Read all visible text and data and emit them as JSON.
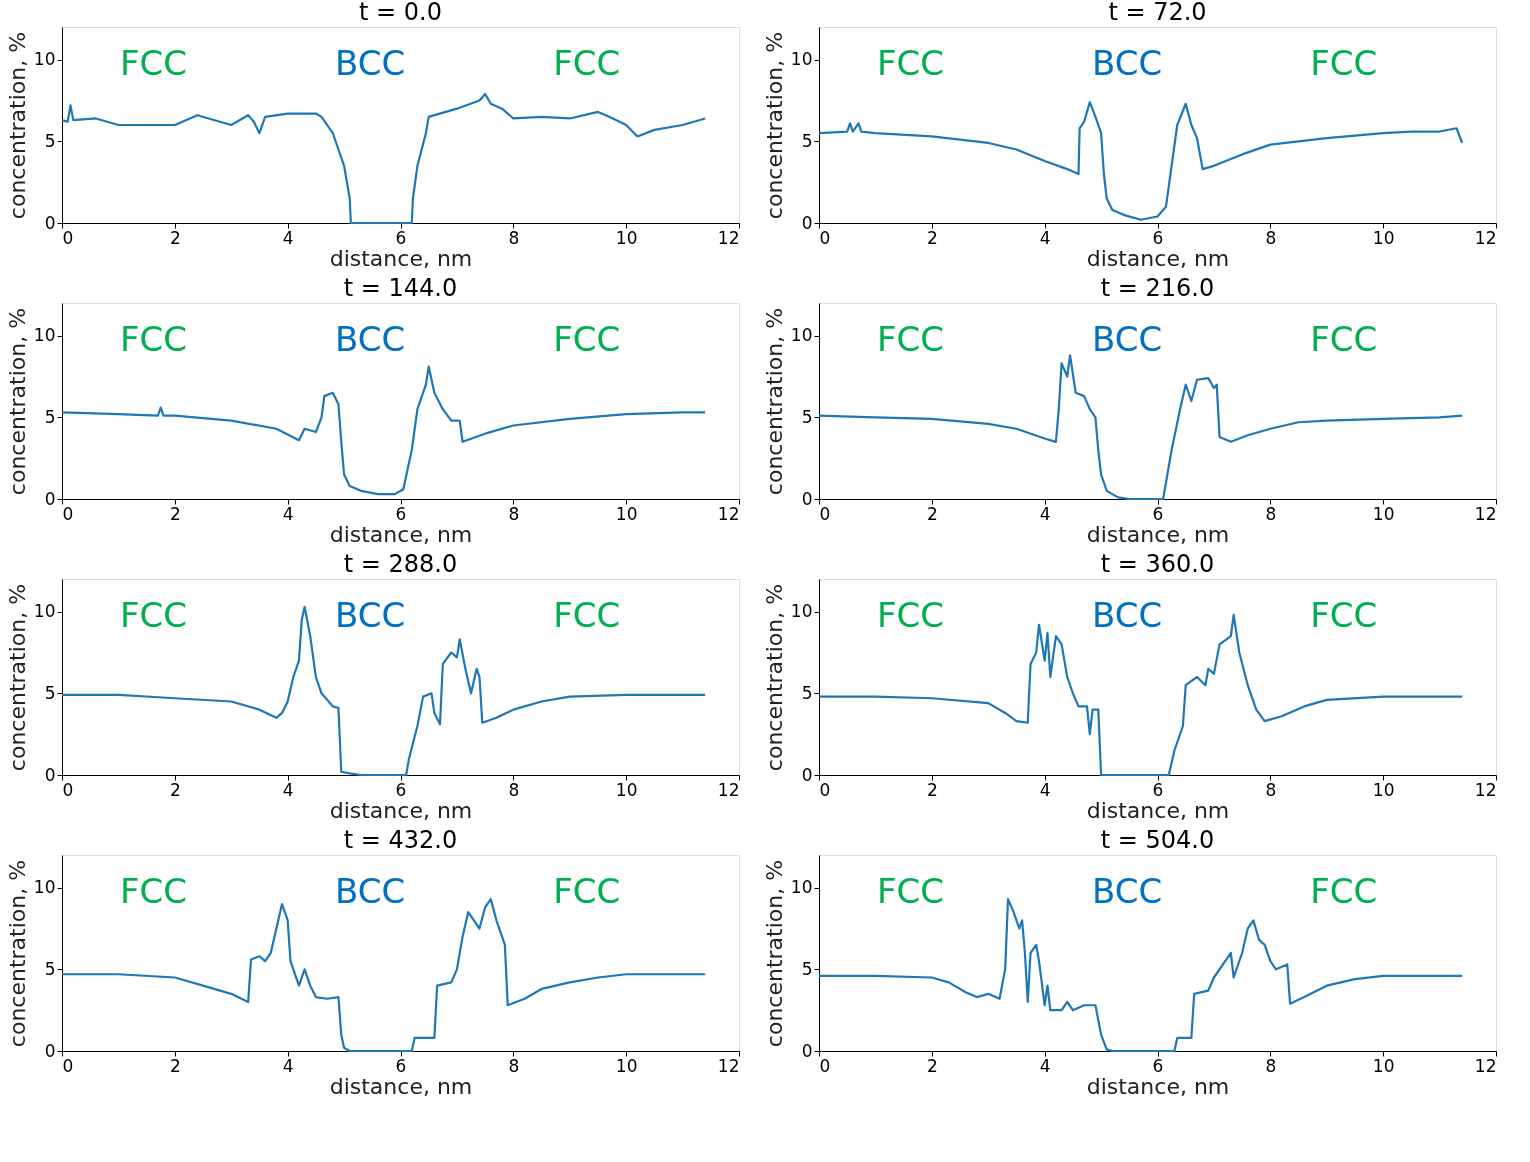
{
  "chart_data": [
    {
      "type": "line",
      "title": "t = 0.0",
      "xlabel": "distance, nm",
      "ylabel": "concentration, %",
      "xlim": [
        0,
        12
      ],
      "ylim": [
        0,
        12
      ],
      "xticks": [
        0,
        2,
        4,
        6,
        8,
        10,
        12
      ],
      "yticks": [
        0,
        5,
        10
      ],
      "grid": false,
      "marker": "none",
      "line_style": "solid",
      "annotations": [
        "FCC",
        "BCC",
        "FCC"
      ],
      "series": [
        {
          "color": "#1f77b4",
          "x": [
            0,
            0.1,
            0.15,
            0.2,
            0.6,
            1.0,
            1.5,
            2.0,
            2.4,
            2.6,
            3.0,
            3.3,
            3.4,
            3.5,
            3.6,
            4.0,
            4.5,
            4.6,
            4.8,
            4.9,
            5.0,
            5.1,
            5.12,
            6.2,
            6.22,
            6.3,
            6.45,
            6.5,
            7.0,
            7.4,
            7.5,
            7.6,
            7.8,
            8.0,
            8.5,
            9.0,
            9.5,
            9.7,
            10.0,
            10.2,
            10.5,
            11.0,
            11.4
          ],
          "values": [
            6.3,
            6.2,
            7.2,
            6.3,
            6.4,
            6.0,
            6.0,
            6.0,
            6.6,
            6.4,
            6.0,
            6.6,
            6.2,
            5.5,
            6.5,
            6.7,
            6.7,
            6.5,
            5.5,
            4.5,
            3.5,
            1.5,
            0,
            0,
            1.5,
            3.5,
            5.5,
            6.5,
            7.0,
            7.5,
            7.9,
            7.3,
            7.0,
            6.4,
            6.5,
            6.4,
            6.8,
            6.5,
            6.0,
            5.3,
            5.7,
            6.0,
            6.4
          ]
        }
      ]
    },
    {
      "type": "line",
      "title": "t = 72.0",
      "xlabel": "distance, nm",
      "ylabel": "concentration, %",
      "xlim": [
        0,
        12
      ],
      "ylim": [
        0,
        12
      ],
      "xticks": [
        0,
        2,
        4,
        6,
        8,
        10,
        12
      ],
      "yticks": [
        0,
        5,
        10
      ],
      "grid": false,
      "marker": "none",
      "line_style": "solid",
      "annotations": [
        "FCC",
        "BCC",
        "FCC"
      ],
      "series": [
        {
          "color": "#1f77b4",
          "x": [
            0,
            0.5,
            0.55,
            0.6,
            0.7,
            0.75,
            1.0,
            2.0,
            3.0,
            3.5,
            4.0,
            4.4,
            4.6,
            4.62,
            4.7,
            4.8,
            4.9,
            5.0,
            5.05,
            5.1,
            5.2,
            5.4,
            5.7,
            6.0,
            6.15,
            6.25,
            6.35,
            6.5,
            6.6,
            6.7,
            6.8,
            7.0,
            7.5,
            8.0,
            9.0,
            10.0,
            10.5,
            11.0,
            11.3,
            11.4
          ],
          "values": [
            5.5,
            5.6,
            6.1,
            5.6,
            6.1,
            5.6,
            5.5,
            5.3,
            4.9,
            4.5,
            3.8,
            3.3,
            3.0,
            5.8,
            6.2,
            7.4,
            6.5,
            5.5,
            3.0,
            1.5,
            0.8,
            0.5,
            0.2,
            0.4,
            1.0,
            3.5,
            6.0,
            7.3,
            6.0,
            5.2,
            3.3,
            3.5,
            4.2,
            4.8,
            5.2,
            5.5,
            5.6,
            5.6,
            5.8,
            4.9
          ]
        }
      ]
    },
    {
      "type": "line",
      "title": "t = 144.0",
      "xlabel": "distance, nm",
      "ylabel": "concentration, %",
      "xlim": [
        0,
        12
      ],
      "ylim": [
        0,
        12
      ],
      "xticks": [
        0,
        2,
        4,
        6,
        8,
        10,
        12
      ],
      "yticks": [
        0,
        5,
        10
      ],
      "grid": false,
      "marker": "none",
      "line_style": "solid",
      "annotations": [
        "FCC",
        "BCC",
        "FCC"
      ],
      "series": [
        {
          "color": "#1f77b4",
          "x": [
            0,
            1.0,
            1.7,
            1.75,
            1.8,
            2.0,
            3.0,
            3.8,
            4.2,
            4.3,
            4.5,
            4.6,
            4.65,
            4.8,
            4.9,
            4.95,
            5.0,
            5.1,
            5.3,
            5.6,
            5.9,
            6.05,
            6.2,
            6.3,
            6.45,
            6.5,
            6.6,
            6.75,
            6.9,
            7.05,
            7.1,
            7.5,
            8.0,
            9.0,
            10.0,
            11.0,
            11.4
          ],
          "values": [
            5.3,
            5.2,
            5.1,
            5.6,
            5.1,
            5.1,
            4.8,
            4.3,
            3.6,
            4.3,
            4.1,
            5.0,
            6.3,
            6.5,
            5.8,
            3.5,
            1.5,
            0.8,
            0.5,
            0.3,
            0.3,
            0.6,
            3.0,
            5.5,
            7.0,
            8.1,
            6.5,
            5.5,
            4.8,
            4.8,
            3.5,
            4.0,
            4.5,
            4.9,
            5.2,
            5.3,
            5.3
          ]
        }
      ]
    },
    {
      "type": "line",
      "title": "t = 216.0",
      "xlabel": "distance, nm",
      "ylabel": "concentration, %",
      "xlim": [
        0,
        12
      ],
      "ylim": [
        0,
        12
      ],
      "xticks": [
        0,
        2,
        4,
        6,
        8,
        10,
        12
      ],
      "yticks": [
        0,
        5,
        10
      ],
      "grid": false,
      "marker": "none",
      "line_style": "solid",
      "annotations": [
        "FCC",
        "BCC",
        "FCC"
      ],
      "series": [
        {
          "color": "#1f77b4",
          "x": [
            0,
            1.0,
            2.0,
            3.0,
            3.5,
            4.0,
            4.2,
            4.25,
            4.3,
            4.4,
            4.45,
            4.55,
            4.7,
            4.8,
            4.9,
            4.95,
            5.0,
            5.1,
            5.3,
            5.5,
            6.1,
            6.15,
            6.25,
            6.4,
            6.5,
            6.6,
            6.7,
            6.9,
            7.0,
            7.05,
            7.1,
            7.3,
            7.6,
            8.0,
            8.5,
            9.0,
            10.0,
            11.0,
            11.4
          ],
          "values": [
            5.1,
            5.0,
            4.9,
            4.6,
            4.3,
            3.7,
            3.5,
            5.5,
            8.3,
            7.5,
            8.8,
            6.5,
            6.3,
            5.5,
            5.0,
            3.0,
            1.5,
            0.5,
            0.1,
            0,
            0,
            1.0,
            3.0,
            5.5,
            7.0,
            6.0,
            7.3,
            7.4,
            6.8,
            7.0,
            3.8,
            3.5,
            3.9,
            4.3,
            4.7,
            4.8,
            4.9,
            5.0,
            5.1
          ]
        }
      ]
    },
    {
      "type": "line",
      "title": "t = 288.0",
      "xlabel": "distance, nm",
      "ylabel": "concentration, %",
      "xlim": [
        0,
        12
      ],
      "ylim": [
        0,
        12
      ],
      "xticks": [
        0,
        2,
        4,
        6,
        8,
        10,
        12
      ],
      "yticks": [
        0,
        5,
        10
      ],
      "grid": false,
      "marker": "none",
      "line_style": "solid",
      "annotations": [
        "FCC",
        "BCC",
        "FCC"
      ],
      "series": [
        {
          "color": "#1f77b4",
          "x": [
            0,
            1.0,
            2.0,
            3.0,
            3.5,
            3.8,
            3.9,
            4.0,
            4.1,
            4.2,
            4.25,
            4.3,
            4.4,
            4.5,
            4.6,
            4.8,
            4.9,
            4.95,
            5.1,
            5.3,
            6.1,
            6.15,
            6.3,
            6.4,
            6.55,
            6.6,
            6.7,
            6.75,
            6.9,
            7.0,
            7.05,
            7.15,
            7.25,
            7.35,
            7.4,
            7.45,
            7.7,
            8.0,
            8.5,
            9.0,
            10.0,
            11.0,
            11.4
          ],
          "values": [
            4.9,
            4.9,
            4.7,
            4.5,
            4.0,
            3.5,
            3.8,
            4.5,
            6.0,
            7.0,
            9.5,
            10.3,
            8.5,
            6.0,
            5.0,
            4.2,
            4.1,
            0.2,
            0.1,
            0,
            0,
            1.0,
            3.0,
            4.8,
            5.0,
            3.8,
            3.1,
            6.8,
            7.5,
            7.2,
            8.3,
            6.5,
            5.0,
            6.5,
            6.0,
            3.2,
            3.5,
            4.0,
            4.5,
            4.8,
            4.9,
            4.9,
            4.9
          ]
        }
      ]
    },
    {
      "type": "line",
      "title": "t = 360.0",
      "xlabel": "distance, nm",
      "ylabel": "concentration, %",
      "xlim": [
        0,
        12
      ],
      "ylim": [
        0,
        12
      ],
      "xticks": [
        0,
        2,
        4,
        6,
        8,
        10,
        12
      ],
      "yticks": [
        0,
        5,
        10
      ],
      "grid": false,
      "marker": "none",
      "line_style": "solid",
      "annotations": [
        "FCC",
        "BCC",
        "FCC"
      ],
      "series": [
        {
          "color": "#1f77b4",
          "x": [
            0,
            1.0,
            2.0,
            3.0,
            3.3,
            3.5,
            3.7,
            3.75,
            3.85,
            3.9,
            4.0,
            4.05,
            4.1,
            4.2,
            4.3,
            4.4,
            4.5,
            4.6,
            4.75,
            4.8,
            4.85,
            4.95,
            5.0,
            6.2,
            6.3,
            6.45,
            6.5,
            6.7,
            6.85,
            6.9,
            7.0,
            7.1,
            7.3,
            7.35,
            7.45,
            7.6,
            7.75,
            7.9,
            8.2,
            8.6,
            9.0,
            10.0,
            11.0,
            11.4
          ],
          "values": [
            4.8,
            4.8,
            4.7,
            4.4,
            3.8,
            3.3,
            3.2,
            6.8,
            7.5,
            9.2,
            7.0,
            8.7,
            6.0,
            8.5,
            8.0,
            6.0,
            5.0,
            4.2,
            4.2,
            2.5,
            4.0,
            4.0,
            0,
            0,
            1.5,
            3.0,
            5.5,
            6.0,
            5.5,
            6.5,
            6.2,
            8.0,
            8.5,
            9.8,
            7.5,
            5.5,
            4.0,
            3.3,
            3.6,
            4.2,
            4.6,
            4.8,
            4.8,
            4.8
          ]
        }
      ]
    },
    {
      "type": "line",
      "title": "t = 432.0",
      "xlabel": "distance, nm",
      "ylabel": "concentration, %",
      "xlim": [
        0,
        12
      ],
      "ylim": [
        0,
        12
      ],
      "xticks": [
        0,
        2,
        4,
        6,
        8,
        10,
        12
      ],
      "yticks": [
        0,
        5,
        10
      ],
      "grid": false,
      "marker": "none",
      "line_style": "solid",
      "annotations": [
        "FCC",
        "BCC",
        "FCC"
      ],
      "series": [
        {
          "color": "#1f77b4",
          "x": [
            0,
            1.0,
            2.0,
            2.5,
            3.0,
            3.3,
            3.35,
            3.5,
            3.6,
            3.7,
            3.8,
            3.9,
            4.0,
            4.05,
            4.2,
            4.3,
            4.4,
            4.5,
            4.7,
            4.9,
            4.95,
            5.0,
            5.1,
            6.2,
            6.25,
            6.6,
            6.65,
            6.9,
            7.0,
            7.1,
            7.2,
            7.3,
            7.4,
            7.5,
            7.6,
            7.7,
            7.8,
            7.85,
            7.9,
            8.2,
            8.5,
            9.0,
            9.5,
            10.0,
            11.0,
            11.4
          ],
          "values": [
            4.7,
            4.7,
            4.5,
            4.0,
            3.5,
            3.0,
            5.6,
            5.8,
            5.5,
            6.0,
            7.5,
            9.0,
            8.0,
            5.5,
            4.0,
            5.0,
            4.0,
            3.3,
            3.2,
            3.3,
            1.0,
            0.2,
            0,
            0,
            0.8,
            0.8,
            4.0,
            4.2,
            5.0,
            7.0,
            8.5,
            8.0,
            7.5,
            8.8,
            9.3,
            8.0,
            7.0,
            6.5,
            2.8,
            3.2,
            3.8,
            4.2,
            4.5,
            4.7,
            4.7,
            4.7
          ]
        }
      ]
    },
    {
      "type": "line",
      "title": "t = 504.0",
      "xlabel": "distance, nm",
      "ylabel": "concentration, %",
      "xlim": [
        0,
        12
      ],
      "ylim": [
        0,
        12
      ],
      "xticks": [
        0,
        2,
        4,
        6,
        8,
        10,
        12
      ],
      "yticks": [
        0,
        5,
        10
      ],
      "grid": false,
      "marker": "none",
      "line_style": "solid",
      "annotations": [
        "FCC",
        "BCC",
        "FCC"
      ],
      "series": [
        {
          "color": "#1f77b4",
          "x": [
            0,
            1.0,
            2.0,
            2.3,
            2.6,
            2.8,
            3.0,
            3.2,
            3.3,
            3.35,
            3.45,
            3.55,
            3.6,
            3.65,
            3.7,
            3.75,
            3.85,
            3.9,
            4.0,
            4.05,
            4.1,
            4.3,
            4.4,
            4.5,
            4.7,
            4.9,
            5.0,
            5.1,
            5.2,
            6.3,
            6.35,
            6.6,
            6.65,
            6.9,
            7.0,
            7.2,
            7.3,
            7.35,
            7.5,
            7.6,
            7.7,
            7.8,
            7.9,
            8.0,
            8.1,
            8.3,
            8.35,
            8.6,
            9.0,
            9.5,
            10.0,
            11.0,
            11.4
          ],
          "values": [
            4.6,
            4.6,
            4.5,
            4.2,
            3.6,
            3.3,
            3.5,
            3.2,
            5.0,
            9.3,
            8.5,
            7.5,
            8.0,
            6.0,
            3.0,
            6.0,
            6.5,
            5.5,
            2.8,
            4.0,
            2.5,
            2.5,
            3.0,
            2.5,
            2.8,
            2.8,
            1.0,
            0.1,
            0,
            0,
            0.8,
            0.8,
            3.5,
            3.7,
            4.5,
            5.5,
            6.0,
            4.5,
            6.0,
            7.5,
            8.0,
            6.8,
            6.5,
            5.5,
            5.0,
            5.3,
            2.9,
            3.3,
            4.0,
            4.4,
            4.6,
            4.6,
            4.6
          ]
        }
      ]
    }
  ]
}
